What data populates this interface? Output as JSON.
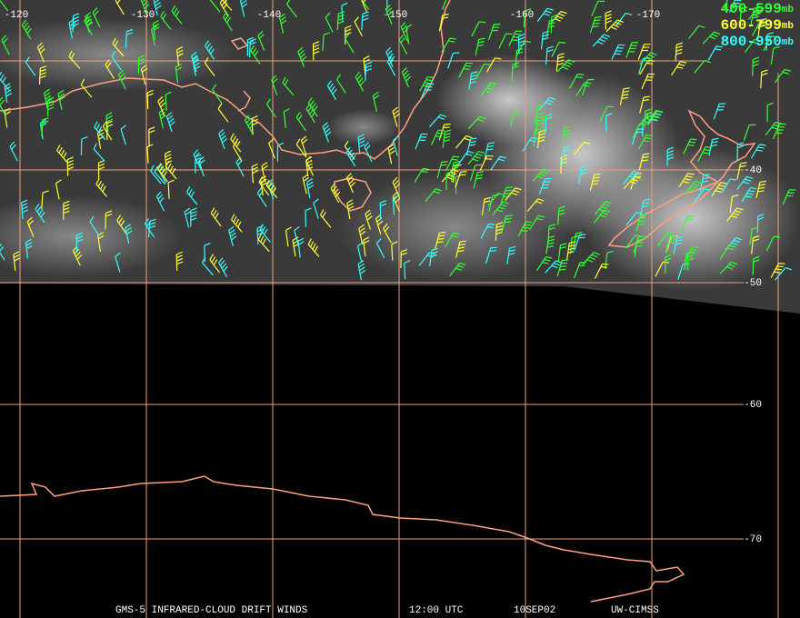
{
  "map": {
    "longitude_labels": [
      "-120",
      "-130",
      "-140",
      "-150",
      "-160",
      "-170"
    ],
    "latitude_labels": [
      "-40",
      "-50",
      "-60",
      "-70"
    ],
    "legend": [
      {
        "range": "400-599",
        "unit": "mb",
        "color": "#33ff33"
      },
      {
        "range": "600-799",
        "unit": "mb",
        "color": "#ffff33"
      },
      {
        "range": "800-950",
        "unit": "mb",
        "color": "#33ffff"
      }
    ],
    "footer": [
      "GMS-5 INFRARED-CLOUD DRIFT WINDS",
      "12:00 UTC",
      "10SEP02",
      "UW-CIMSS"
    ]
  }
}
